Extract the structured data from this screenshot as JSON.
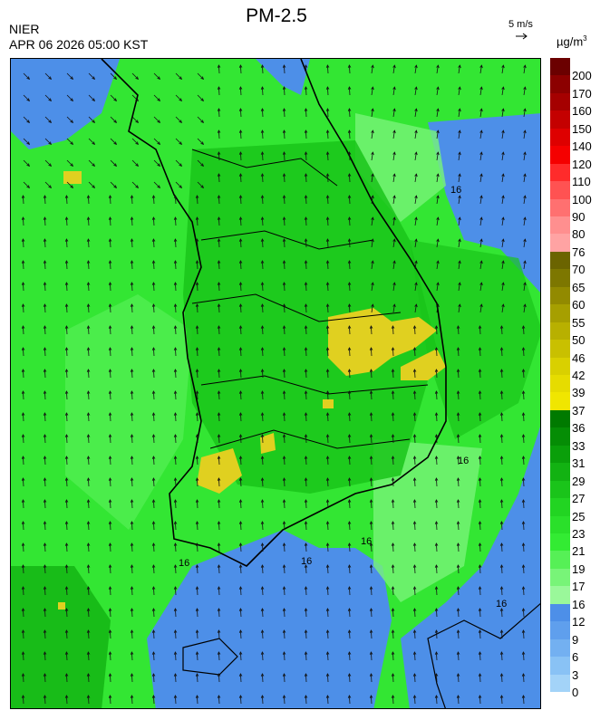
{
  "header": {
    "title": "PM-2.5",
    "org": "NIER",
    "timestamp": "APR 06 2026 05:00 KST",
    "vector_ref": "5 m/s",
    "units_base": "µg/m",
    "units_exp": "3"
  },
  "map": {
    "contour_label": "16",
    "base_color": "#33e633",
    "hotspot_color": "#e0d020",
    "clean_color": "#4d8fe8"
  },
  "colorbar": {
    "ticks": [
      "200",
      "170",
      "160",
      "150",
      "140",
      "120",
      "110",
      "100",
      "90",
      "80",
      "76",
      "70",
      "65",
      "60",
      "55",
      "50",
      "46",
      "42",
      "39",
      "37",
      "36",
      "33",
      "31",
      "29",
      "27",
      "25",
      "23",
      "21",
      "19",
      "17",
      "16",
      "12",
      "9",
      "6",
      "3",
      "0"
    ],
    "colors": [
      "#6b0000",
      "#8c0000",
      "#a50000",
      "#c40000",
      "#de0000",
      "#f50000",
      "#ff2b2b",
      "#ff5252",
      "#ff7070",
      "#ff8f8f",
      "#ffa3a3",
      "#6b6400",
      "#7d7700",
      "#928a00",
      "#a69f00",
      "#b8b000",
      "#c9c000",
      "#d9d000",
      "#e6dc00",
      "#f0e600",
      "#007a00",
      "#058d05",
      "#0a9f0a",
      "#12b212",
      "#1ac41a",
      "#22d422",
      "#2ae02a",
      "#33eb33",
      "#56f056",
      "#78f478",
      "#9af89a",
      "#4d8fe8",
      "#5f9fed",
      "#73b0f1",
      "#89c2f5",
      "#a3d3f8"
    ]
  }
}
